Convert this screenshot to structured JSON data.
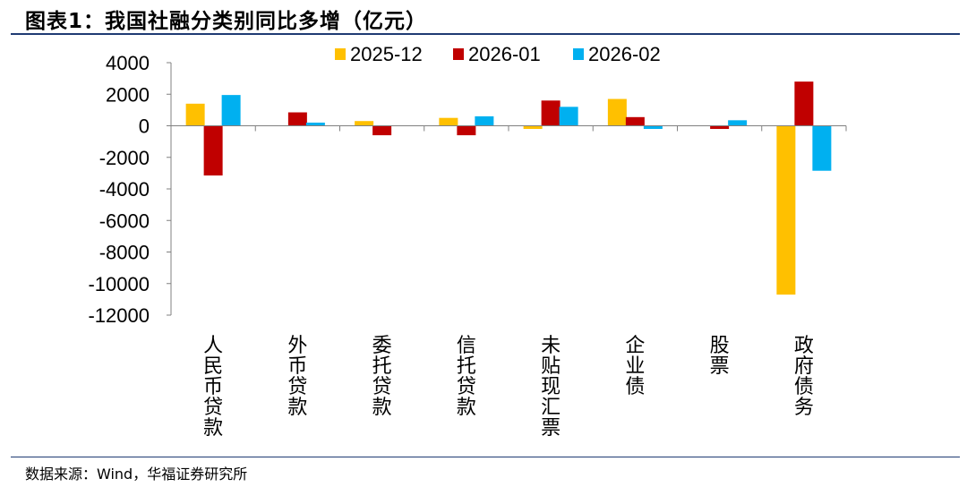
{
  "header": {
    "title": "图表1：我国社融分类别同比多增（亿元）"
  },
  "footer": {
    "source": "数据来源：Wind，华福证券研究所"
  },
  "chart_data": {
    "type": "bar",
    "title": "图表1：我国社融分类别同比多增（亿元）",
    "xlabel": "",
    "ylabel": "",
    "ylim": [
      -12000,
      4000
    ],
    "yticks": [
      "4000",
      "2000",
      "0",
      "-2000",
      "-4000",
      "-6000",
      "-8000",
      "-10000",
      "-12000"
    ],
    "legend_position": "top",
    "grid": false,
    "categories": [
      "人民币贷款",
      "外币贷款",
      "委托贷款",
      "信托贷款",
      "未贴现汇票",
      "企业债",
      "股票",
      "政府债务"
    ],
    "series": [
      {
        "name": "2025-12",
        "color": "#FFC000",
        "values": [
          1400,
          0,
          300,
          500,
          -200,
          1700,
          0,
          -10700
        ]
      },
      {
        "name": "2026-01",
        "color": "#C00000",
        "values": [
          -3150,
          850,
          -600,
          -600,
          1600,
          550,
          -200,
          2800
        ]
      },
      {
        "name": "2026-02",
        "color": "#00B0F0",
        "values": [
          1950,
          200,
          0,
          600,
          1200,
          -200,
          350,
          -2850
        ]
      }
    ]
  }
}
